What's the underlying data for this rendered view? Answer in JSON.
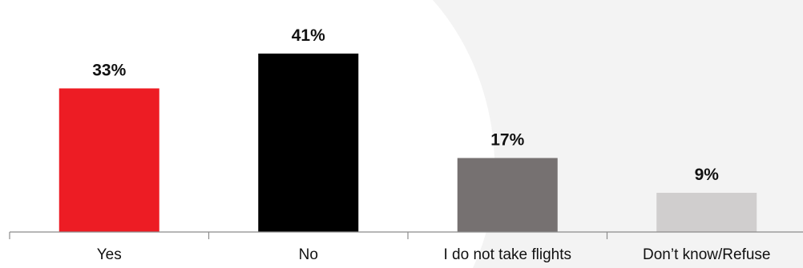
{
  "chart_data": {
    "type": "bar",
    "categories": [
      "Yes",
      "No",
      "I do not take flights",
      "Don’t know/Refuse"
    ],
    "values": [
      33,
      41,
      17,
      9
    ],
    "value_labels": [
      "33%",
      "41%",
      "17%",
      "9%"
    ],
    "colors": [
      "#ed1c24",
      "#000000",
      "#767171",
      "#d0cece"
    ],
    "title": "",
    "xlabel": "",
    "ylabel": "",
    "ylim": [
      0,
      45
    ],
    "grid": false,
    "legend": "none"
  }
}
